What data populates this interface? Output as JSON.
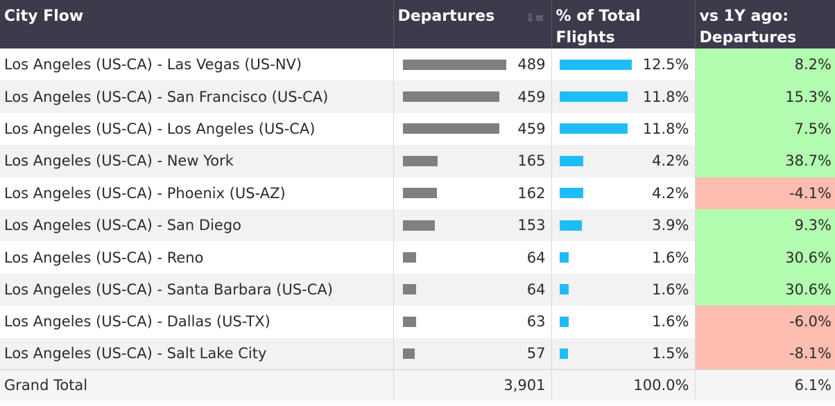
{
  "header": {
    "city_flow": "City Flow",
    "departures": "Departures",
    "pct_total": "% of Total Flights",
    "vs_1y": "vs 1Y ago: Departures"
  },
  "chart_data": {
    "type": "table",
    "columns": [
      "City Flow",
      "Departures",
      "% of Total Flights",
      "vs 1Y ago: Departures"
    ],
    "rows": [
      {
        "flow": "Los Angeles (US-CA) - Las Vegas (US-NV)",
        "departures": 489,
        "departures_label": "489",
        "pct": 12.5,
        "pct_label": "12.5%",
        "change": 8.2,
        "change_label": "8.2%"
      },
      {
        "flow": "Los Angeles (US-CA) - San Francisco (US-CA)",
        "departures": 459,
        "departures_label": "459",
        "pct": 11.8,
        "pct_label": "11.8%",
        "change": 15.3,
        "change_label": "15.3%"
      },
      {
        "flow": "Los Angeles (US-CA) - Los Angeles (US-CA)",
        "departures": 459,
        "departures_label": "459",
        "pct": 11.8,
        "pct_label": "11.8%",
        "change": 7.5,
        "change_label": "7.5%"
      },
      {
        "flow": "Los Angeles (US-CA) - New York",
        "departures": 165,
        "departures_label": "165",
        "pct": 4.2,
        "pct_label": "4.2%",
        "change": 38.7,
        "change_label": "38.7%"
      },
      {
        "flow": "Los Angeles (US-CA) - Phoenix (US-AZ)",
        "departures": 162,
        "departures_label": "162",
        "pct": 4.2,
        "pct_label": "4.2%",
        "change": -4.1,
        "change_label": "-4.1%"
      },
      {
        "flow": "Los Angeles (US-CA) - San Diego",
        "departures": 153,
        "departures_label": "153",
        "pct": 3.9,
        "pct_label": "3.9%",
        "change": 9.3,
        "change_label": "9.3%"
      },
      {
        "flow": "Los Angeles (US-CA) - Reno",
        "departures": 64,
        "departures_label": "64",
        "pct": 1.6,
        "pct_label": "1.6%",
        "change": 30.6,
        "change_label": "30.6%"
      },
      {
        "flow": "Los Angeles (US-CA) - Santa Barbara (US-CA)",
        "departures": 64,
        "departures_label": "64",
        "pct": 1.6,
        "pct_label": "1.6%",
        "change": 30.6,
        "change_label": "30.6%"
      },
      {
        "flow": "Los Angeles (US-CA) - Dallas (US-TX)",
        "departures": 63,
        "departures_label": "63",
        "pct": 1.6,
        "pct_label": "1.6%",
        "change": -6.0,
        "change_label": "-6.0%"
      },
      {
        "flow": "Los Angeles (US-CA) - Salt Lake City",
        "departures": 57,
        "departures_label": "57",
        "pct": 1.5,
        "pct_label": "1.5%",
        "change": -8.1,
        "change_label": "-8.1%"
      }
    ],
    "total": {
      "label": "Grand Total",
      "departures": "3,901",
      "pct": "100.0%",
      "change": "6.1%"
    },
    "colors": {
      "header": "#3d3a4c",
      "departure_bar": "#7f7f7f",
      "pct_bar": "#1fbdf7",
      "positive": "#b3fdb0",
      "negative": "#fdbdb0"
    }
  },
  "icons": {
    "sort": "sort-descending-icon"
  }
}
